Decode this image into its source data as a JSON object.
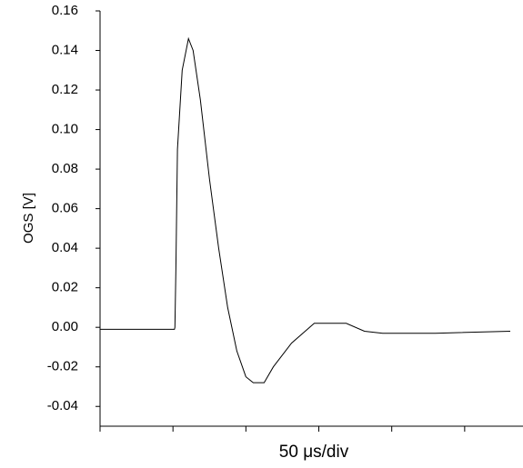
{
  "chart_data": {
    "type": "line",
    "y_label": "OGS [V]",
    "x_label": "50 μs/div",
    "color": "#000000",
    "x": [
      0,
      10,
      20,
      30,
      40,
      51,
      51.3,
      52,
      53.1,
      56.3,
      60.6,
      63.8,
      68.8,
      75,
      81.3,
      87.5,
      93.8,
      100,
      105,
      112.5,
      118.8,
      131.3,
      146.9,
      168.8,
      181.3,
      193.8,
      230,
      281.3
    ],
    "values": [
      -0.001,
      -0.001,
      -0.001,
      -0.001,
      -0.001,
      -0.001,
      0.0,
      0.03,
      0.09,
      0.13,
      0.146,
      0.14,
      0.115,
      0.075,
      0.04,
      0.01,
      -0.012,
      -0.025,
      -0.028,
      -0.028,
      -0.02,
      -0.008,
      0.002,
      0.002,
      -0.002,
      -0.003,
      -0.003,
      -0.002
    ],
    "xlim": [
      0,
      290
    ],
    "xticks": [
      0,
      50,
      100,
      150,
      200,
      250
    ],
    "ylim": [
      -0.05,
      0.16
    ],
    "yticks": [
      0.16,
      0.14,
      0.12,
      {
        "value": 0.1,
        "label": "0.10"
      },
      0.08,
      0.06,
      0.04,
      0.02,
      {
        "value": 0,
        "label": "0.00"
      },
      -0.02,
      -0.04
    ]
  }
}
